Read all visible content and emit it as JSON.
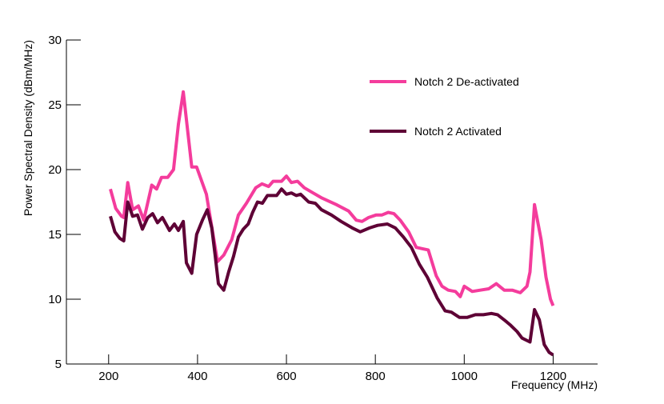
{
  "chart_data": {
    "type": "line",
    "x_label": "Frequency (MHz)",
    "y_label": "Power Spectral Density (dBm/MHz)",
    "xlim": [
      105,
      1300
    ],
    "ylim": [
      5,
      30
    ],
    "xticks": [
      200,
      400,
      600,
      800,
      1000,
      1200
    ],
    "yticks": [
      5,
      10,
      15,
      20,
      25,
      30
    ],
    "grid": false,
    "legend": "upper right",
    "series": [
      {
        "name": "Notch 2 De-activated",
        "color": "#f43c9c",
        "x": [
          204,
          216,
          229,
          234,
          243,
          254,
          267,
          279,
          297,
          308,
          319,
          333,
          346,
          357,
          368,
          387,
          398,
          420,
          445,
          459,
          477,
          492,
          510,
          531,
          545,
          560,
          570,
          589,
          600,
          611,
          625,
          640,
          660,
          680,
          712,
          740,
          757,
          770,
          785,
          802,
          815,
          829,
          842,
          856,
          875,
          892,
          905,
          919,
          937,
          950,
          964,
          980,
          991,
          1000,
          1018,
          1036,
          1055,
          1072,
          1090,
          1108,
          1126,
          1141,
          1148,
          1158,
          1173,
          1184,
          1194,
          1200
        ],
        "values": [
          18.5,
          17.0,
          16.4,
          16.3,
          19.0,
          16.9,
          17.2,
          16.1,
          18.8,
          18.5,
          19.4,
          19.4,
          20.0,
          23.5,
          26.0,
          20.2,
          20.2,
          18.1,
          12.9,
          13.4,
          14.6,
          16.5,
          17.4,
          18.6,
          18.9,
          18.7,
          19.1,
          19.1,
          19.5,
          19.0,
          19.1,
          18.6,
          18.2,
          17.8,
          17.3,
          16.8,
          16.1,
          16.0,
          16.3,
          16.5,
          16.5,
          16.7,
          16.6,
          16.1,
          15.2,
          14.0,
          13.9,
          13.8,
          11.8,
          11.0,
          10.7,
          10.6,
          10.2,
          11.0,
          10.6,
          10.7,
          10.8,
          11.2,
          10.7,
          10.7,
          10.5,
          11.0,
          12.1,
          17.3,
          14.6,
          11.7,
          10.0,
          9.5
        ]
      },
      {
        "name": "Notch 2 Activated",
        "color": "#5e0035",
        "x": [
          204,
          214,
          225,
          234,
          243,
          254,
          265,
          276,
          288,
          299,
          310,
          321,
          337,
          348,
          357,
          368,
          375,
          387,
          398,
          411,
          422,
          432,
          440,
          447,
          459,
          470,
          481,
          492,
          503,
          514,
          524,
          535,
          546,
          557,
          578,
          589,
          600,
          611,
          622,
          632,
          650,
          665,
          679,
          701,
          723,
          748,
          766,
          787,
          805,
          827,
          845,
          863,
          881,
          899,
          917,
          939,
          957,
          971,
          989,
          1007,
          1025,
          1043,
          1061,
          1075,
          1090,
          1104,
          1119,
          1130,
          1148,
          1158,
          1169,
          1180,
          1191,
          1200
        ],
        "values": [
          16.4,
          15.2,
          14.7,
          14.5,
          17.5,
          16.4,
          16.5,
          15.4,
          16.3,
          16.6,
          15.9,
          16.3,
          15.3,
          15.8,
          15.3,
          16.0,
          12.8,
          12.0,
          15.0,
          16.1,
          16.9,
          15.5,
          13.3,
          11.2,
          10.7,
          12.1,
          13.3,
          14.8,
          15.4,
          15.8,
          16.7,
          17.5,
          17.4,
          18.0,
          18.0,
          18.5,
          18.1,
          18.2,
          18.0,
          18.1,
          17.5,
          17.4,
          16.9,
          16.5,
          16.0,
          15.5,
          15.2,
          15.5,
          15.7,
          15.8,
          15.5,
          14.8,
          14.0,
          12.7,
          11.7,
          10.1,
          9.1,
          9.0,
          8.6,
          8.6,
          8.8,
          8.8,
          8.9,
          8.8,
          8.4,
          8.0,
          7.5,
          7.0,
          6.7,
          9.2,
          8.4,
          6.5,
          5.9,
          5.7
        ]
      }
    ]
  }
}
